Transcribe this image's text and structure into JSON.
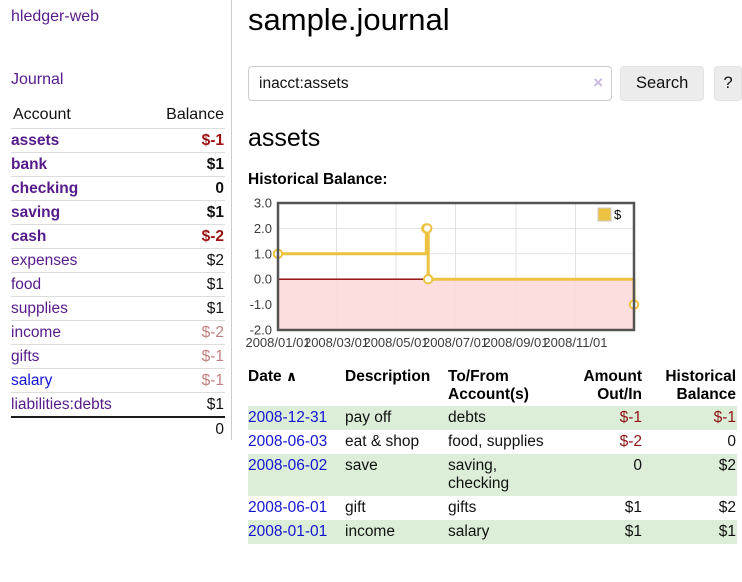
{
  "brand": "hledger-web",
  "nav": {
    "journal": "Journal"
  },
  "icons": {
    "sort_asc": "∧",
    "clear": "×"
  },
  "sidebar": {
    "headers": {
      "account": "Account",
      "balance": "Balance"
    },
    "rows": [
      {
        "account": "assets",
        "balance": "$-1"
      },
      {
        "account": "bank",
        "balance": "$1"
      },
      {
        "account": "checking",
        "balance": "0"
      },
      {
        "account": "saving",
        "balance": "$1"
      },
      {
        "account": "cash",
        "balance": "$-2"
      },
      {
        "account": "expenses",
        "balance": "$2"
      },
      {
        "account": "food",
        "balance": "$1"
      },
      {
        "account": "supplies",
        "balance": "$1"
      },
      {
        "account": "income",
        "balance": "$-2"
      },
      {
        "account": "gifts",
        "balance": "$-1"
      },
      {
        "account": "salary",
        "balance": "$-1"
      },
      {
        "account": "liabilities:debts",
        "balance": "$1"
      }
    ],
    "total": "0"
  },
  "main": {
    "title": "sample.journal",
    "search": {
      "value": "inacct:assets",
      "button": "Search",
      "help": "?"
    },
    "heading": "assets",
    "chart_title": "Historical Balance:"
  },
  "chart_data": {
    "type": "line",
    "step": true,
    "title": "Historical Balance",
    "legend": "$",
    "series": [
      {
        "name": "$",
        "color": "#EDC240",
        "points": [
          [
            "2008-01-01",
            1
          ],
          [
            "2008-06-01",
            2
          ],
          [
            "2008-06-02",
            2
          ],
          [
            "2008-06-03",
            0
          ],
          [
            "2008-12-31",
            -1
          ]
        ]
      }
    ],
    "x_range": [
      "2008-01-01",
      "2008-12-31"
    ],
    "ylim": [
      -2,
      3
    ],
    "y_ticks": [
      "3.0",
      "2.0",
      "1.0",
      "0.0",
      "-1.0",
      "-2.0"
    ],
    "x_ticks": [
      {
        "date": "2008-01-01",
        "label": "2008/01/01"
      },
      {
        "date": "2008-03-01",
        "label": "2008/03/01"
      },
      {
        "date": "2008-05-01",
        "label": "2008/05/01"
      },
      {
        "date": "2008-07-01",
        "label": "2008/07/01"
      },
      {
        "date": "2008-09-01",
        "label": "2008/09/01"
      },
      {
        "date": "2008-11-01",
        "label": "2008/11/01"
      }
    ],
    "grid": true,
    "legend_position": "top-right",
    "negative_fill": "#FCDADA",
    "zero_line_color": "#8B0000"
  },
  "register": {
    "headers": {
      "date": "Date",
      "description": "Description",
      "accounts": "To/From Account(s)",
      "amount": "Amount Out/In",
      "balance": "Historical Balance"
    },
    "rows": [
      {
        "date": "2008-12-31",
        "description": "pay off",
        "accounts": "debts",
        "amount": "$-1",
        "balance": "$-1"
      },
      {
        "date": "2008-06-03",
        "description": "eat & shop",
        "accounts": "food, supplies",
        "amount": "$-2",
        "balance": "0"
      },
      {
        "date": "2008-06-02",
        "description": "save",
        "accounts": "saving, checking",
        "amount": "0",
        "balance": "$2"
      },
      {
        "date": "2008-06-01",
        "description": "gift",
        "accounts": "gifts",
        "amount": "$1",
        "balance": "$2"
      },
      {
        "date": "2008-01-01",
        "description": "income",
        "accounts": "salary",
        "amount": "$1",
        "balance": "$1"
      }
    ]
  },
  "colors": {
    "link_purple": "#551A8B",
    "link_blue": "#1414D2",
    "negative_strong": "#9B1111",
    "negative_soft": "#C1807F",
    "row_green": "#dcedd8",
    "chart_gold": "#EDC240"
  }
}
